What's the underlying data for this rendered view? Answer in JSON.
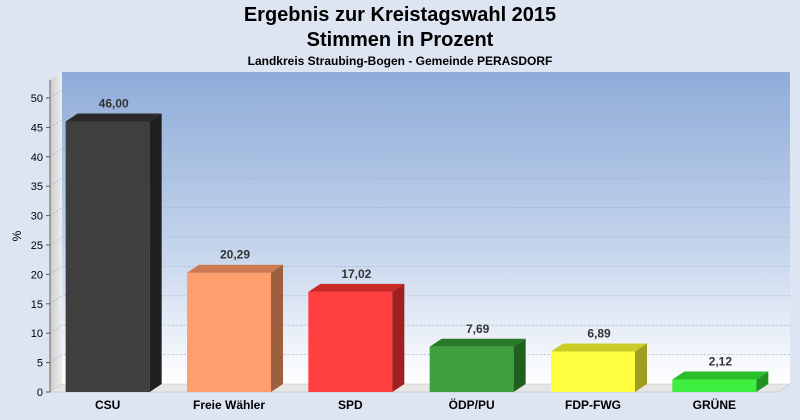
{
  "chart_data": {
    "type": "bar",
    "title": "Ergebnis zur Kreistagswahl 2015",
    "subtitle": "Stimmen in Prozent",
    "caption": "Landkreis Straubing-Bogen - Gemeinde PERASDORF",
    "ylabel": "%",
    "ylim": [
      0,
      50
    ],
    "yticks": [
      0,
      5,
      10,
      15,
      20,
      25,
      30,
      35,
      40,
      45,
      50
    ],
    "grid": true,
    "categories": [
      "CSU",
      "Freie Wähler",
      "SPD",
      "ÖDP/PU",
      "FDP-FWG",
      "GRÜNE"
    ],
    "values": [
      46.0,
      20.29,
      17.02,
      7.69,
      6.89,
      2.12
    ],
    "value_labels": [
      "46,00",
      "20,29",
      "17,02",
      "7,69",
      "6,89",
      "2,12"
    ],
    "colors": [
      "#343434",
      "#ff9966",
      "#ff3333",
      "#339933",
      "#ffff33",
      "#33ee33"
    ]
  }
}
